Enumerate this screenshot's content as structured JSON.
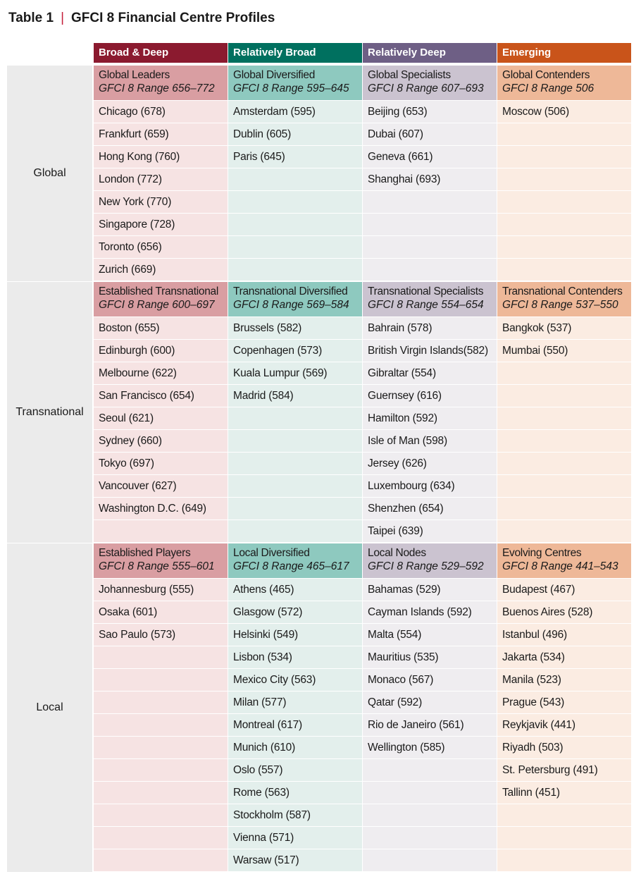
{
  "title": {
    "label": "Table 1",
    "separator": "|",
    "text": "GFCI 8 Financial Centre Profiles"
  },
  "colors": {
    "broad_deep": "#8b1a2f",
    "relatively_broad": "#00705f",
    "relatively_deep": "#6e5f85",
    "emerging": "#c9541a",
    "broad_deep_sub": "#d99ea2",
    "relatively_broad_sub": "#8ec9bf",
    "relatively_deep_sub": "#cbc3d0",
    "emerging_sub": "#eeb898",
    "broad_deep_cell": "#f6e3e3",
    "relatively_broad_cell": "#e3efec",
    "relatively_deep_cell": "#efedf0",
    "emerging_cell": "#fbece2"
  },
  "headers": [
    "Broad & Deep",
    "Relatively Broad",
    "Relatively Deep",
    "Emerging"
  ],
  "bands": [
    {
      "label": "Global",
      "rows": 8,
      "groups": [
        {
          "name": "Global Leaders",
          "range": "GFCI 8 Range 656–772",
          "items": [
            "Chicago (678)",
            "Frankfurt (659)",
            "Hong Kong (760)",
            "London (772)",
            "New York (770)",
            "Singapore (728)",
            "Toronto (656)",
            "Zurich (669)"
          ]
        },
        {
          "name": "Global Diversified",
          "range": "GFCI 8 Range 595–645",
          "items": [
            "Amsterdam (595)",
            "Dublin (605)",
            "Paris (645)"
          ]
        },
        {
          "name": "Global Specialists",
          "range": "GFCI 8 Range 607–693",
          "items": [
            "Beijing (653)",
            "Dubai (607)",
            "Geneva (661)",
            "Shanghai (693)"
          ]
        },
        {
          "name": "Global Contenders",
          "range": "GFCI 8 Range 506",
          "items": [
            "Moscow (506)"
          ]
        }
      ]
    },
    {
      "label": "Transnational",
      "rows": 10,
      "groups": [
        {
          "name": "Established Transnational",
          "range": "GFCI 8 Range 600–697",
          "items": [
            "Boston (655)",
            "Edinburgh (600)",
            "Melbourne (622)",
            "San Francisco (654)",
            "Seoul (621)",
            "Sydney (660)",
            "Tokyo (697)",
            "Vancouver (627)",
            "Washington D.C. (649)"
          ]
        },
        {
          "name": "Transnational Diversified",
          "range": "GFCI 8 Range 569–584",
          "items": [
            "Brussels (582)",
            "Copenhagen (573)",
            "Kuala Lumpur (569)",
            "Madrid (584)"
          ]
        },
        {
          "name": "Transnational Specialists",
          "range": "GFCI 8 Range 554–654",
          "items": [
            "Bahrain (578)",
            "British Virgin Islands(582)",
            "Gibraltar (554)",
            "Guernsey (616)",
            "Hamilton (592)",
            "Isle of Man (598)",
            "Jersey (626)",
            "Luxembourg (634)",
            "Shenzhen (654)",
            "Taipei (639)"
          ]
        },
        {
          "name": "Transnational Contenders",
          "range": "GFCI 8 Range 537–550",
          "items": [
            "Bangkok (537)",
            "Mumbai (550)"
          ]
        }
      ]
    },
    {
      "label": "Local",
      "rows": 13,
      "groups": [
        {
          "name": "Established Players",
          "range": "GFCI 8 Range 555–601",
          "items": [
            "Johannesburg (555)",
            "Osaka (601)",
            "Sao Paulo (573)"
          ]
        },
        {
          "name": "Local Diversified",
          "range": "GFCI 8 Range 465–617",
          "items": [
            "Athens (465)",
            "Glasgow (572)",
            "Helsinki (549)",
            "Lisbon (534)",
            "Mexico City (563)",
            "Milan (577)",
            "Montreal (617)",
            "Munich (610)",
            "Oslo (557)",
            "Rome (563)",
            "Stockholm (587)",
            "Vienna (571)",
            "Warsaw (517)"
          ]
        },
        {
          "name": "Local Nodes",
          "range": "GFCI 8 Range 529–592",
          "items": [
            "Bahamas (529)",
            "Cayman Islands (592)",
            "Malta (554)",
            "Mauritius (535)",
            "Monaco (567)",
            "Qatar (592)",
            "Rio de Janeiro (561)",
            "Wellington (585)"
          ]
        },
        {
          "name": "Evolving Centres",
          "range": "GFCI 8 Range 441–543",
          "items": [
            "Budapest (467)",
            "Buenos Aires (528)",
            "Istanbul (496)",
            "Jakarta (534)",
            "Manila (523)",
            "Prague (543)",
            "Reykjavik (441)",
            "Riyadh (503)",
            "St. Petersburg (491)",
            "Tallinn (451)"
          ]
        }
      ]
    }
  ]
}
